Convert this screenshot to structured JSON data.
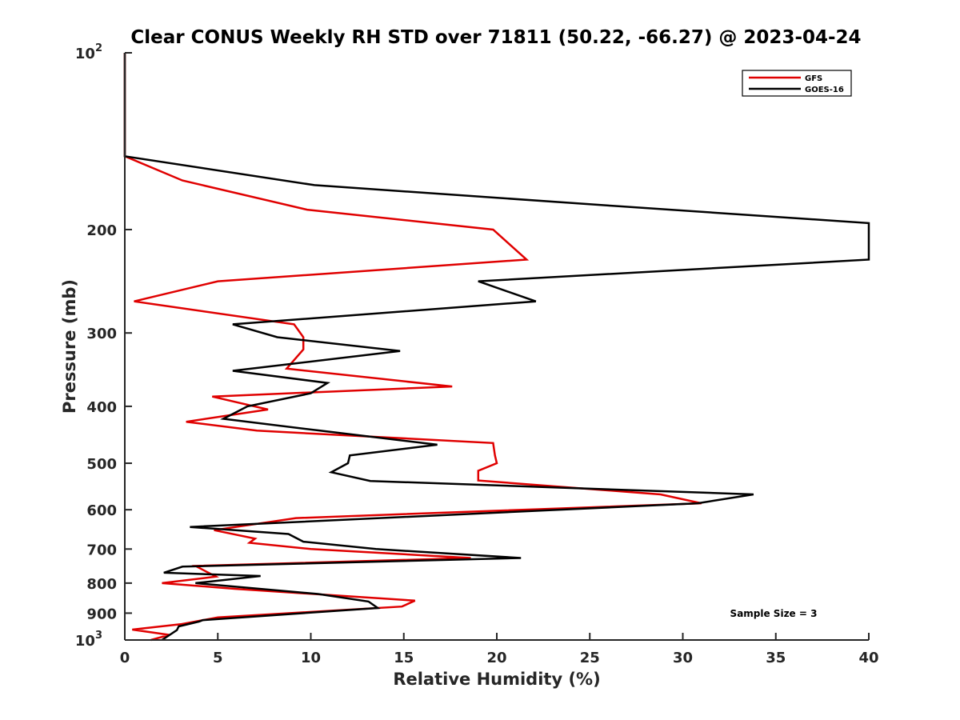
{
  "chart_data": {
    "type": "line",
    "title": "Clear CONUS Weekly RH STD over 71811 (50.22, -66.27) @ 2023-04-24",
    "xlabel": "Relative Humidity (%)",
    "ylabel": "Pressure (mb)",
    "xlim": [
      0,
      40
    ],
    "ylim": [
      100,
      1000
    ],
    "yscale": "log",
    "y_reversed": true,
    "grid": false,
    "legend_position": "top-right",
    "x_ticks": [
      0,
      5,
      10,
      15,
      20,
      25,
      30,
      35,
      40
    ],
    "x_tick_labels": [
      "0",
      "5",
      "10",
      "15",
      "20",
      "25",
      "30",
      "35",
      "40"
    ],
    "y_ticks": [
      100,
      200,
      300,
      400,
      500,
      600,
      700,
      800,
      900,
      1000
    ],
    "y_tick_labels": [
      {
        "base": "10",
        "exp": "2"
      },
      {
        "base": "200",
        "exp": ""
      },
      {
        "base": "300",
        "exp": ""
      },
      {
        "base": "400",
        "exp": ""
      },
      {
        "base": "500",
        "exp": ""
      },
      {
        "base": "600",
        "exp": ""
      },
      {
        "base": "700",
        "exp": ""
      },
      {
        "base": "800",
        "exp": ""
      },
      {
        "base": "900",
        "exp": ""
      },
      {
        "base": "10",
        "exp": "3"
      }
    ],
    "annotation": "Sample Size = 3",
    "series": [
      {
        "name": "GFS",
        "color": "#e00000",
        "points": [
          [
            0,
            100
          ],
          [
            0,
            150
          ],
          [
            3.1,
            165
          ],
          [
            9.8,
            185
          ],
          [
            19.8,
            200
          ],
          [
            21.6,
            225
          ],
          [
            5.0,
            245
          ],
          [
            0.5,
            265
          ],
          [
            9.1,
            290
          ],
          [
            9.6,
            305
          ],
          [
            9.6,
            320
          ],
          [
            8.7,
            345
          ],
          [
            17.6,
            370
          ],
          [
            4.7,
            385
          ],
          [
            7.7,
            405
          ],
          [
            3.3,
            425
          ],
          [
            7.1,
            440
          ],
          [
            19.8,
            462
          ],
          [
            19.9,
            485
          ],
          [
            20.0,
            500
          ],
          [
            19.0,
            515
          ],
          [
            19.0,
            535
          ],
          [
            28.8,
            565
          ],
          [
            31.0,
            585
          ],
          [
            9.2,
            620
          ],
          [
            4.8,
            650
          ],
          [
            7.0,
            672
          ],
          [
            6.7,
            683
          ],
          [
            10.0,
            700
          ],
          [
            18.6,
            725
          ],
          [
            3.8,
            748
          ],
          [
            4.9,
            780
          ],
          [
            2.0,
            800
          ],
          [
            5.9,
            818
          ],
          [
            15.6,
            857
          ],
          [
            14.9,
            877
          ],
          [
            5.0,
            915
          ],
          [
            3.0,
            940
          ],
          [
            0.4,
            960
          ],
          [
            2.4,
            980
          ],
          [
            1.4,
            1000
          ]
        ]
      },
      {
        "name": "GOES-16",
        "color": "#000000",
        "points": [
          [
            0,
            100
          ],
          [
            0,
            150
          ],
          [
            10.2,
            168
          ],
          [
            26.0,
            182
          ],
          [
            40,
            195
          ],
          [
            40,
            225
          ],
          [
            19.0,
            245
          ],
          [
            22.1,
            265
          ],
          [
            5.8,
            290
          ],
          [
            8.2,
            305
          ],
          [
            14.8,
            322
          ],
          [
            5.8,
            348
          ],
          [
            10.9,
            365
          ],
          [
            10.0,
            380
          ],
          [
            6.6,
            400
          ],
          [
            5.3,
            420
          ],
          [
            10.5,
            440
          ],
          [
            16.8,
            465
          ],
          [
            12.1,
            485
          ],
          [
            12.0,
            500
          ],
          [
            11.1,
            518
          ],
          [
            13.2,
            536
          ],
          [
            33.8,
            565
          ],
          [
            30.8,
            585
          ],
          [
            3.5,
            642
          ],
          [
            8.8,
            660
          ],
          [
            9.6,
            680
          ],
          [
            13.5,
            700
          ],
          [
            21.3,
            725
          ],
          [
            3.1,
            750
          ],
          [
            2.1,
            768
          ],
          [
            7.3,
            778
          ],
          [
            3.8,
            800
          ],
          [
            10.4,
            835
          ],
          [
            13.1,
            860
          ],
          [
            13.6,
            882
          ],
          [
            4.2,
            925
          ],
          [
            4.0,
            930
          ],
          [
            2.9,
            948
          ],
          [
            2.8,
            962
          ],
          [
            2.0,
            1000
          ]
        ]
      }
    ]
  }
}
